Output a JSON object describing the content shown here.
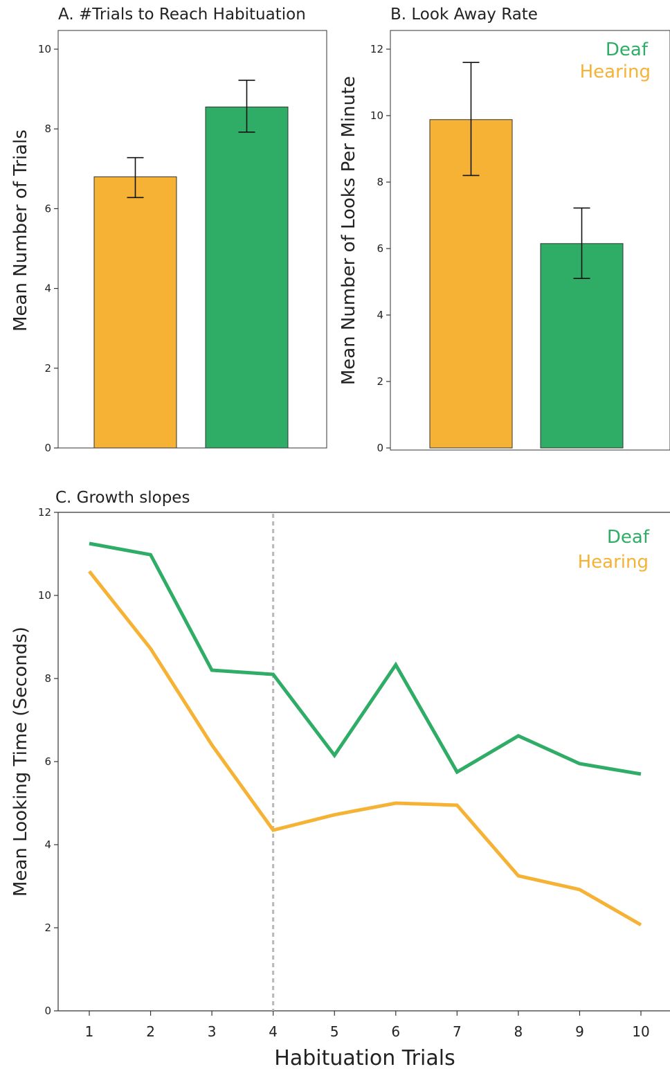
{
  "colors": {
    "deaf": "#2fad67",
    "hearing": "#f6b234",
    "dashed": "#b8b8b8"
  },
  "legend": {
    "deaf": "Deaf",
    "hearing": "Hearing"
  },
  "chart_data": [
    {
      "id": "A",
      "type": "bar",
      "title": "A. #Trials to Reach Habituation",
      "ylabel": "Mean Number of Trials",
      "xlabel": "",
      "ylim": [
        0,
        10
      ],
      "yticks": [
        "0",
        "2",
        "4",
        "6",
        "8",
        "10"
      ],
      "categories": [
        "Hearing",
        "Deaf"
      ],
      "values": [
        6.8,
        8.55
      ],
      "error_low": [
        6.28,
        7.92
      ],
      "error_high": [
        7.28,
        9.22
      ],
      "legend": "none"
    },
    {
      "id": "B",
      "type": "bar",
      "title": "B. Look Away Rate",
      "ylabel": "Mean Number of Looks Per Minute",
      "xlabel": "",
      "ylim": [
        0,
        12
      ],
      "yticks": [
        "0",
        "2",
        "4",
        "6",
        "8",
        "10",
        "12"
      ],
      "categories": [
        "Hearing",
        "Deaf"
      ],
      "values": [
        9.88,
        6.15
      ],
      "error_low": [
        8.2,
        5.1
      ],
      "error_high": [
        11.6,
        7.22
      ],
      "legend": "top-right"
    },
    {
      "id": "C",
      "type": "line",
      "title": "C. Growth slopes",
      "ylabel": "Mean Looking Time (Seconds)",
      "xlabel": "Habituation Trials",
      "ylim": [
        0,
        12
      ],
      "yticks": [
        "0",
        "2",
        "4",
        "6",
        "8",
        "10",
        "12"
      ],
      "x": [
        "1",
        "2",
        "3",
        "4",
        "5",
        "6",
        "7",
        "8",
        "9",
        "10"
      ],
      "series": [
        {
          "name": "Deaf",
          "values": [
            11.25,
            10.98,
            8.2,
            8.1,
            6.15,
            8.33,
            5.75,
            6.62,
            5.95,
            5.7
          ]
        },
        {
          "name": "Hearing",
          "values": [
            10.58,
            8.72,
            6.4,
            4.35,
            4.72,
            5.0,
            4.95,
            3.25,
            2.92,
            2.07
          ]
        }
      ],
      "reference_line_x": "4",
      "legend": "top-right"
    }
  ]
}
